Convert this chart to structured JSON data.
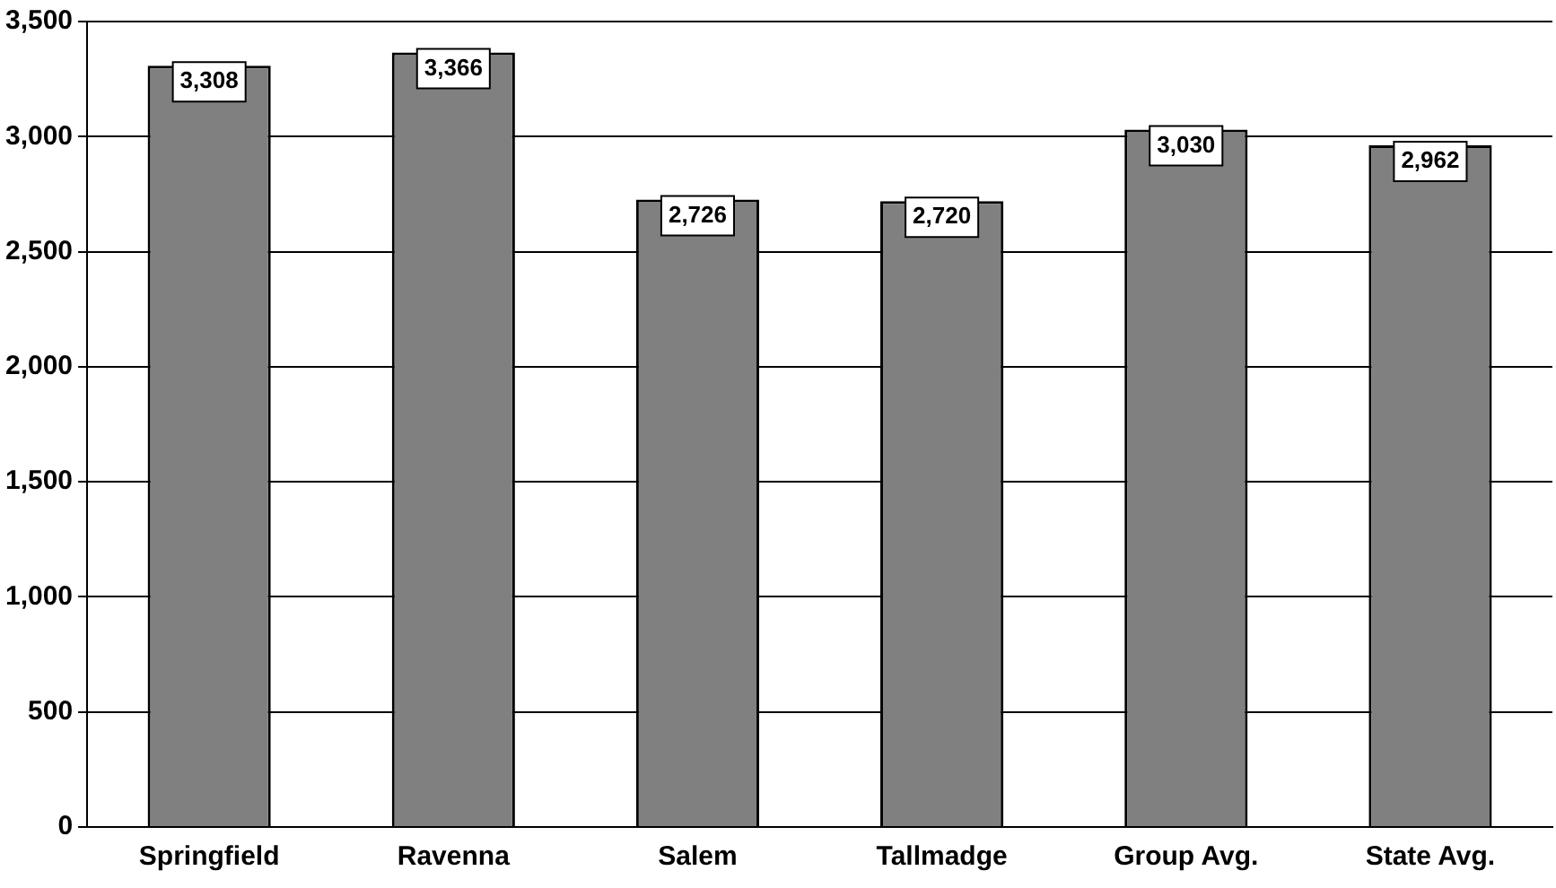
{
  "chart_data": {
    "type": "bar",
    "categories": [
      "Springfield",
      "Ravenna",
      "Salem",
      "Tallmadge",
      "Group Avg.",
      "State Avg."
    ],
    "values": [
      3308,
      3366,
      2726,
      2720,
      3030,
      2962
    ],
    "color": "#808080",
    "value_labels": [
      "3,308",
      "3,366",
      "2,726",
      "2,720",
      "3,030",
      "2,962"
    ],
    "ylim": [
      0,
      3500
    ],
    "yticks": [
      0,
      500,
      {
        "value": 1000,
        "label": "1,000"
      },
      {
        "value": 1500,
        "label": "1,500"
      },
      {
        "value": 2000,
        "label": "2,000"
      },
      {
        "value": 2500,
        "label": "2,500"
      },
      {
        "value": 3000,
        "label": "3,000"
      },
      {
        "value": 3500,
        "label": "3,500"
      }
    ],
    "grid": "y",
    "legend": false
  }
}
